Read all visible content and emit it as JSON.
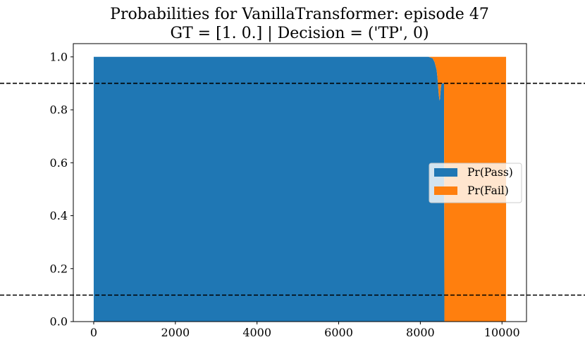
{
  "chart_data": {
    "type": "area",
    "title": "Probabilities for VanillaTransformer: episode 47",
    "subtitle": "GT = [1. 0.] | Decision = ('TP', 0)",
    "xlabel": "",
    "ylabel": "",
    "xlim": [
      -500,
      10600
    ],
    "ylim": [
      0.0,
      1.05
    ],
    "x_ticks": [
      0,
      2000,
      4000,
      6000,
      8000,
      10000
    ],
    "x_tick_labels": [
      "0",
      "2000",
      "4000",
      "6000",
      "8000",
      "10000"
    ],
    "y_ticks": [
      0.0,
      0.2,
      0.4,
      0.6,
      0.8,
      1.0
    ],
    "y_tick_labels": [
      "0.0",
      "0.2",
      "0.4",
      "0.6",
      "0.8",
      "1.0"
    ],
    "grid": false,
    "legend_position": "center-right",
    "thresholds": [
      0.9,
      0.1
    ],
    "threshold_style": "dashed",
    "threshold_color": "#000000",
    "series": [
      {
        "name": "Pr(Pass)",
        "color": "#1f77b4",
        "x": [
          0,
          8000,
          8200,
          8300,
          8350,
          8400,
          8420,
          8450,
          8470,
          8480,
          8500,
          8520,
          8550,
          8580,
          8590,
          8600,
          10100
        ],
        "values": [
          1.0,
          1.0,
          1.0,
          0.995,
          0.98,
          0.95,
          0.92,
          0.86,
          0.835,
          0.84,
          0.88,
          0.9,
          0.9,
          0.9,
          0.0,
          0.0,
          0.0
        ]
      },
      {
        "name": "Pr(Fail)",
        "color": "#ff7f0e",
        "x": [
          0,
          8000,
          8200,
          8300,
          8350,
          8400,
          8420,
          8450,
          8470,
          8480,
          8500,
          8520,
          8550,
          8580,
          8590,
          8600,
          10100
        ],
        "values": [
          0.0,
          0.0,
          0.0,
          0.005,
          0.02,
          0.05,
          0.08,
          0.14,
          0.165,
          0.16,
          0.12,
          0.1,
          0.1,
          0.1,
          1.0,
          1.0,
          1.0
        ]
      }
    ]
  }
}
